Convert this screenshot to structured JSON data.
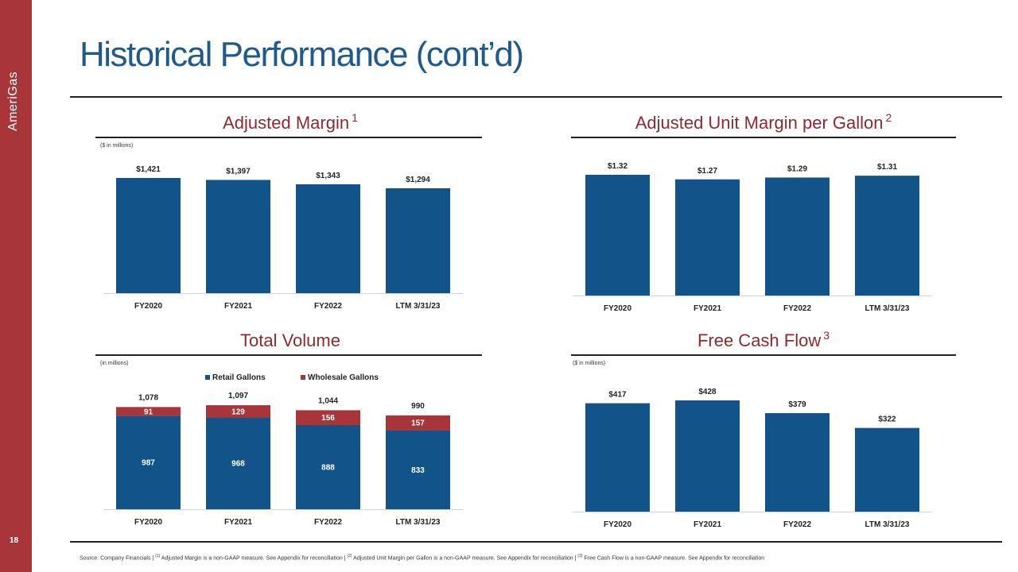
{
  "brand": "AmeriGas",
  "page_number": "18",
  "title": "Historical Performance (cont’d)",
  "colors": {
    "bar_blue": "#12548a",
    "bar_red": "#a7353a",
    "title_blue": "#1f5a8a",
    "panel_title": "#8b2a30",
    "sidebar": "#a7353a"
  },
  "panels": {
    "adjusted_margin": {
      "title": "Adjusted Margin",
      "sup": "1",
      "note": "($ in millions)"
    },
    "unit_margin": {
      "title": "Adjusted Unit Margin per Gallon",
      "sup": "2"
    },
    "total_volume": {
      "title": "Total Volume",
      "note": "(in millions)"
    },
    "free_cash_flow": {
      "title": "Free Cash Flow",
      "sup": "3",
      "note": "($ in millions)"
    }
  },
  "footer": {
    "part1": "Source:  Company Financials  |  ",
    "sup1": "(1)",
    "part2": " Adjusted Margin  is a non-GAAP measure.  See Appendix for reconciliation  |  ",
    "sup2": "(2)",
    "part3": " Adjusted Unit Margin  per Gallon is a non-GAAP measure.  See Appendix for reconciliation  |  ",
    "sup3": "(3)",
    "part4": " Free  Cash  Flow is a non-GAAP measure.  See Appendix for reconciliation"
  },
  "chart_data": [
    {
      "id": "adjusted_margin",
      "type": "bar",
      "title": "Adjusted Margin",
      "categories": [
        "FY2020",
        "FY2021",
        "FY2022",
        "LTM 3/31/23"
      ],
      "values": [
        1421,
        1397,
        1343,
        1294
      ],
      "labels": [
        "$1,421",
        "$1,397",
        "$1,343",
        "$1,294"
      ],
      "ylim": [
        0,
        1421
      ],
      "ylabel": "($ in millions)"
    },
    {
      "id": "unit_margin",
      "type": "bar",
      "title": "Adjusted Unit Margin per Gallon",
      "categories": [
        "FY2020",
        "FY2021",
        "FY2022",
        "LTM 3/31/23"
      ],
      "values": [
        1.32,
        1.27,
        1.29,
        1.31
      ],
      "labels": [
        "$1.32",
        "$1.27",
        "$1.29",
        "$1.31"
      ],
      "ylim": [
        0,
        1.32
      ]
    },
    {
      "id": "total_volume",
      "type": "bar",
      "stacked": true,
      "title": "Total Volume",
      "categories": [
        "FY2020",
        "FY2021",
        "FY2022",
        "LTM 3/31/23"
      ],
      "series": [
        {
          "name": "Retail Gallons",
          "values": [
            987,
            968,
            888,
            833
          ]
        },
        {
          "name": "Wholesale Gallons",
          "values": [
            91,
            129,
            156,
            157
          ]
        }
      ],
      "totals": [
        1078,
        1097,
        1044,
        990
      ],
      "total_labels": [
        "1,078",
        "1,097",
        "1,044",
        "990"
      ],
      "legend": "top",
      "ylim": [
        0,
        1240
      ],
      "ylabel": "(in millions)"
    },
    {
      "id": "free_cash_flow",
      "type": "bar",
      "title": "Free Cash Flow",
      "categories": [
        "FY2020",
        "FY2021",
        "FY2022",
        "LTM 3/31/23"
      ],
      "values": [
        417,
        428,
        379,
        322
      ],
      "labels": [
        "$417",
        "$428",
        "$379",
        "$322"
      ],
      "ylim": [
        0,
        428
      ],
      "ylabel": "($ in millions)"
    }
  ]
}
